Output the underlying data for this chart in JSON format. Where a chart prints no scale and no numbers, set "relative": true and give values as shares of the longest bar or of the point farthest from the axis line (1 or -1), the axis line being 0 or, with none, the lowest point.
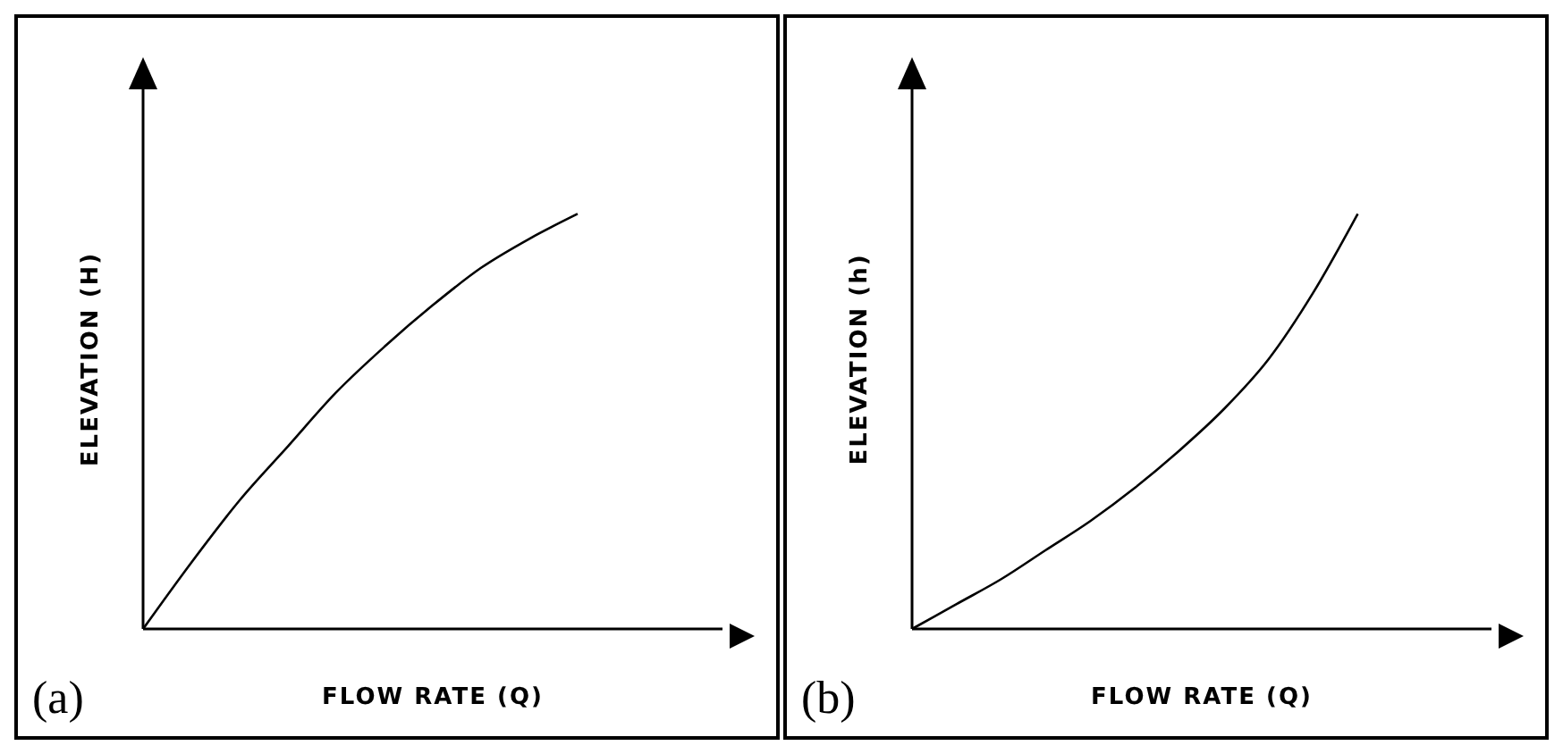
{
  "chart_data": [
    {
      "type": "line",
      "relative": true,
      "xlabel": "FLOW RATE (Q)",
      "ylabel": "ELEVATION (H)",
      "annotations": [
        "(a)"
      ],
      "categories": [
        null,
        null,
        null,
        null,
        null,
        null,
        null,
        null,
        null,
        null,
        null,
        null,
        null
      ],
      "series": [
        {
          "color": "#000000",
          "values": [
            0,
            0.16,
            0.31,
            0.44,
            0.57,
            0.68,
            0.78,
            0.87,
            0.94,
            1,
            null,
            null,
            null
          ]
        }
      ]
    },
    {
      "type": "line",
      "relative": true,
      "xlabel": "FLOW RATE (Q)",
      "ylabel": "ELEVATION (h)",
      "annotations": [
        "(b)"
      ],
      "categories": [
        null,
        null,
        null,
        null,
        null,
        null,
        null,
        null,
        null,
        null,
        null,
        null,
        null,
        null
      ],
      "series": [
        {
          "color": "#000000",
          "values": [
            0,
            0.06,
            0.12,
            0.19,
            0.26,
            0.34,
            0.43,
            0.53,
            0.65,
            0.81,
            1,
            null,
            null,
            null
          ]
        }
      ]
    }
  ]
}
